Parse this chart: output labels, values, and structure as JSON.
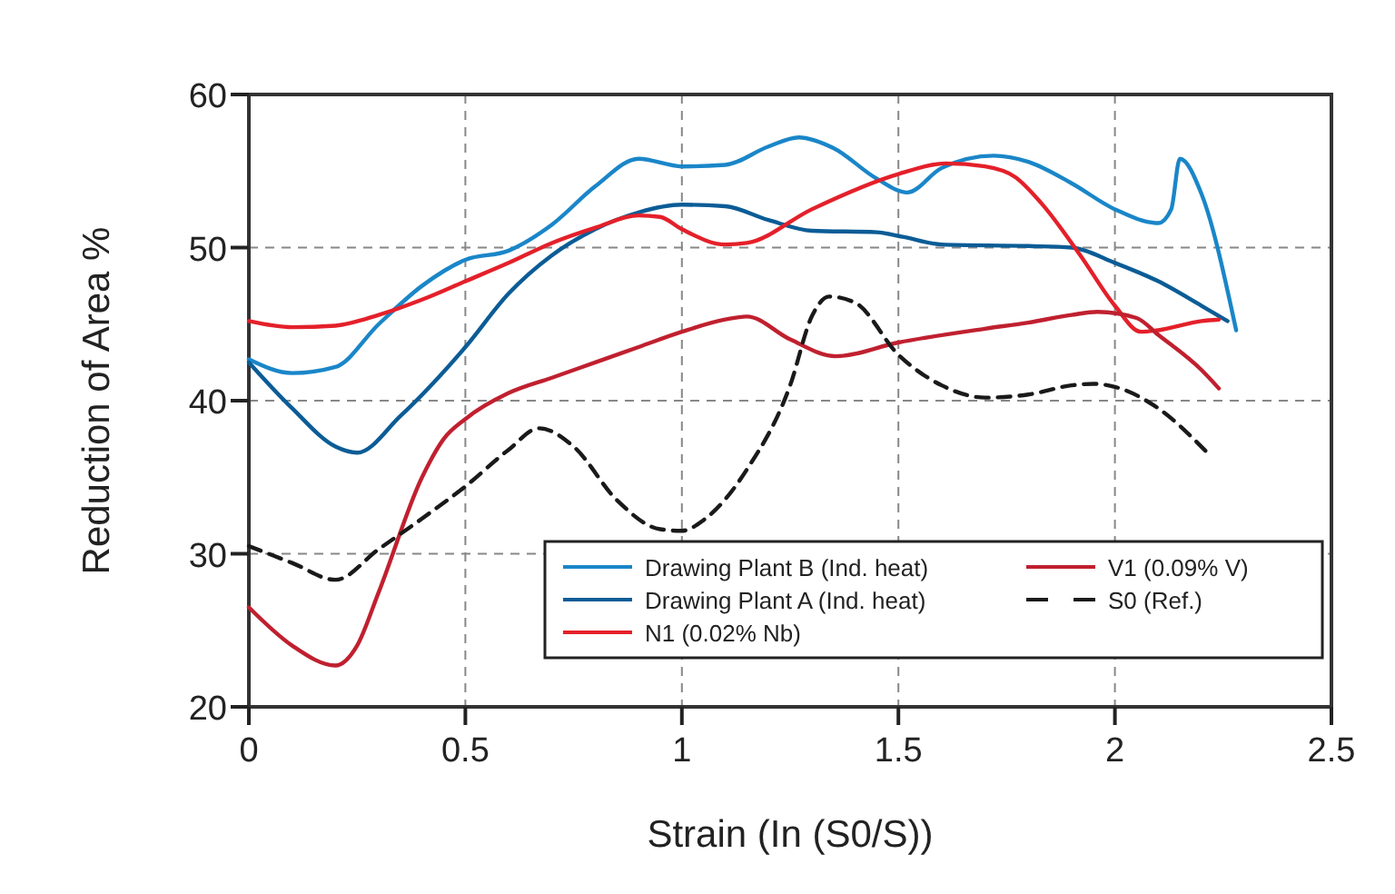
{
  "chart_data": {
    "type": "line",
    "xlabel": "Strain (In (S0/S))",
    "ylabel": "Reduction of Area %",
    "xlim": [
      0,
      2.5
    ],
    "xticks": [
      0,
      0.5,
      1,
      1.5,
      2,
      2.5
    ],
    "ylim": [
      20,
      60
    ],
    "yticks": [
      20,
      30,
      40,
      50,
      60
    ],
    "grid": true,
    "legend": "bottom right",
    "line_style": "solid",
    "series": [
      {
        "name": "Drawing Plant B (Ind. heat)",
        "color": "#1a86c8",
        "x": [
          0,
          0.1,
          0.2,
          0.3,
          0.4,
          0.5,
          0.6,
          0.7,
          0.8,
          0.9,
          1.0,
          1.1,
          1.2,
          1.27,
          1.35,
          1.45,
          1.52,
          1.6,
          1.72,
          1.8,
          1.9,
          2.0,
          2.1,
          2.13,
          2.15,
          2.2,
          2.28
        ],
        "values": [
          42.7,
          41.8,
          42.2,
          45,
          47.5,
          49.2,
          49.8,
          51.5,
          54,
          55.8,
          55.3,
          55.4,
          56.6,
          57.2,
          56.5,
          54.5,
          53.6,
          55.2,
          56,
          55.6,
          54.2,
          52.5,
          51.6,
          52.5,
          55.8,
          53.5,
          44.6
        ]
      },
      {
        "name": "Drawing Plant A (Ind. heat)",
        "color": "#0b5c96",
        "x": [
          0,
          0.1,
          0.2,
          0.25,
          0.35,
          0.5,
          0.6,
          0.7,
          0.8,
          0.9,
          1.0,
          1.1,
          1.2,
          1.3,
          1.45,
          1.51,
          1.6,
          1.8,
          1.9,
          2.0,
          2.1,
          2.2,
          2.26
        ],
        "values": [
          42.5,
          39.5,
          37,
          36.6,
          39,
          43.5,
          47,
          49.5,
          51.2,
          52.3,
          52.8,
          52.7,
          51.8,
          51.1,
          51,
          50.7,
          50.2,
          50.1,
          50,
          49,
          47.8,
          46.2,
          45.2
        ]
      },
      {
        "name": "N1 (0.02% Nb)",
        "color": "#e4202a",
        "x": [
          0,
          0.1,
          0.2,
          0.3,
          0.4,
          0.5,
          0.6,
          0.7,
          0.8,
          0.9,
          0.95,
          1.0,
          1.1,
          1.15,
          1.3,
          1.5,
          1.61,
          1.7,
          1.77,
          1.83,
          1.92,
          2.0,
          2.06,
          2.1,
          2.2,
          2.24
        ],
        "values": [
          45.2,
          44.8,
          44.9,
          45.6,
          46.6,
          47.8,
          49,
          50.3,
          51.3,
          52.1,
          52,
          51.2,
          50.2,
          50.3,
          52.5,
          54.8,
          55.5,
          55.3,
          54.6,
          52.9,
          49.5,
          46.2,
          44.5,
          44.6,
          45.2,
          45.3
        ]
      },
      {
        "name": "V1 (0.09% V)",
        "color": "#c0202f",
        "x": [
          0,
          0.1,
          0.2,
          0.25,
          0.3,
          0.4,
          0.45,
          0.5,
          0.6,
          0.7,
          0.8,
          0.9,
          1.0,
          1.1,
          1.15,
          1.25,
          1.355,
          1.5,
          1.7,
          1.8,
          1.9,
          1.96,
          2.05,
          2.1,
          2.2,
          2.24
        ],
        "values": [
          26.5,
          24,
          22.7,
          24,
          27.5,
          35,
          37.5,
          38.8,
          40.5,
          41.5,
          42.5,
          43.5,
          44.5,
          45.3,
          45.5,
          44,
          42.9,
          43.8,
          44.7,
          45.1,
          45.6,
          45.8,
          45.4,
          44.3,
          42,
          40.8
        ]
      },
      {
        "name": "S0 (Ref.)",
        "color": "#1a1a1a",
        "line_style": "dashed",
        "x": [
          0,
          0.1,
          0.2,
          0.3,
          0.4,
          0.5,
          0.6,
          0.67,
          0.75,
          0.85,
          0.95,
          1.0,
          1.05,
          1.15,
          1.25,
          1.3,
          1.34,
          1.4,
          1.5,
          1.6,
          1.7,
          1.8,
          1.9,
          1.95,
          2.0,
          2.1,
          2.21
        ],
        "values": [
          30.5,
          29.4,
          28.3,
          30.3,
          32.3,
          34.4,
          36.8,
          38.2,
          37,
          33.5,
          31.6,
          31.5,
          32.2,
          35.5,
          41,
          45.5,
          46.8,
          46.4,
          43,
          41,
          40.2,
          40.4,
          41,
          41.1,
          40.9,
          39.5,
          36.7
        ]
      }
    ]
  }
}
